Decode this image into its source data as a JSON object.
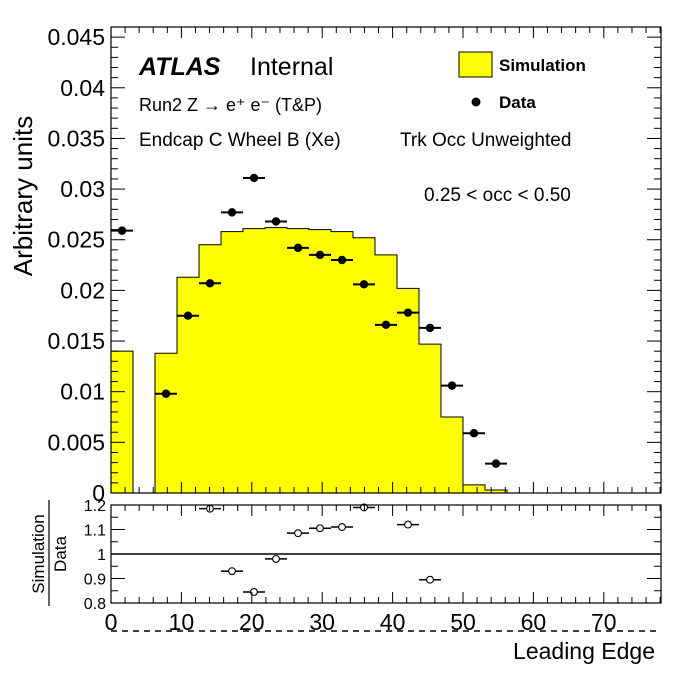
{
  "chart_data": [
    {
      "type": "histogram",
      "experiment": "ATLAS",
      "status": "Internal",
      "annotations": [
        "Run2 Z → e⁺ e⁻ (T&P)",
        "Endcap C Wheel B (Xe)",
        "Trk Occ Unweighted",
        "0.25 < occ < 0.50"
      ],
      "ylabel": "Arbitrary units",
      "xlim": [
        0,
        78.125
      ],
      "ylim": [
        0,
        0.046
      ],
      "yticks": [
        "0",
        "0.005",
        "0.01",
        "0.015",
        "0.02",
        "0.025",
        "0.03",
        "0.035",
        "0.04",
        "0.045"
      ],
      "legend": {
        "position": "top-right",
        "entries": [
          {
            "label": "Simulation",
            "style": "filled-box",
            "color": "#ffff00"
          },
          {
            "label": "Data",
            "style": "marker",
            "color": "#000000"
          }
        ]
      },
      "bin_width": 3.125,
      "series": [
        {
          "name": "Simulation",
          "style": "filled-histogram",
          "color": "#ffff00",
          "bin_edges": [
            0,
            3.125,
            6.25,
            9.375,
            12.5,
            15.625,
            18.75,
            21.875,
            25,
            28.125,
            31.25,
            34.375,
            37.5,
            40.625,
            43.75,
            46.875,
            50,
            53.125,
            56.25
          ],
          "values": [
            0.014,
            0.0,
            0.0138,
            0.0213,
            0.0245,
            0.0258,
            0.0261,
            0.0262,
            0.0261,
            0.026,
            0.0258,
            0.0252,
            0.0235,
            0.0202,
            0.0147,
            0.0075,
            0.0008,
            0.0003
          ]
        },
        {
          "name": "Data",
          "style": "markers-with-xerr",
          "color": "#000000",
          "x": [
            1.5625,
            7.8125,
            10.9375,
            14.0625,
            17.1875,
            20.3125,
            23.4375,
            26.5625,
            29.6875,
            32.8125,
            35.9375,
            39.0625,
            42.1875,
            45.3125,
            48.4375,
            51.5625,
            54.6875
          ],
          "y": [
            0.0259,
            0.0098,
            0.0175,
            0.0207,
            0.0277,
            0.0311,
            0.0268,
            0.0242,
            0.0235,
            0.023,
            0.0206,
            0.0166,
            0.0178,
            0.0163,
            0.0106,
            0.0059,
            0.0029
          ]
        }
      ]
    },
    {
      "type": "scatter",
      "role": "ratio-panel",
      "ylabel_numerator": "Simulation",
      "ylabel_denominator": "Data",
      "xlabel": "Leading Edge",
      "xlim": [
        0,
        78.125
      ],
      "ylim": [
        0.8,
        1.2
      ],
      "xticks": [
        "0",
        "10",
        "20",
        "30",
        "40",
        "50",
        "60",
        "70"
      ],
      "yticks": [
        "0.8",
        "0.9",
        "1",
        "1.1",
        "1.2"
      ],
      "reference_line": 1.0,
      "series": [
        {
          "name": "Simulation / Data",
          "style": "open-markers-with-xerr",
          "x": [
            14.0625,
            17.1875,
            20.3125,
            23.4375,
            26.5625,
            29.6875,
            32.8125,
            35.9375,
            42.1875,
            45.3125
          ],
          "y": [
            1.185,
            0.93,
            0.845,
            0.98,
            1.085,
            1.105,
            1.11,
            1.19,
            1.12,
            0.895
          ]
        }
      ]
    }
  ]
}
